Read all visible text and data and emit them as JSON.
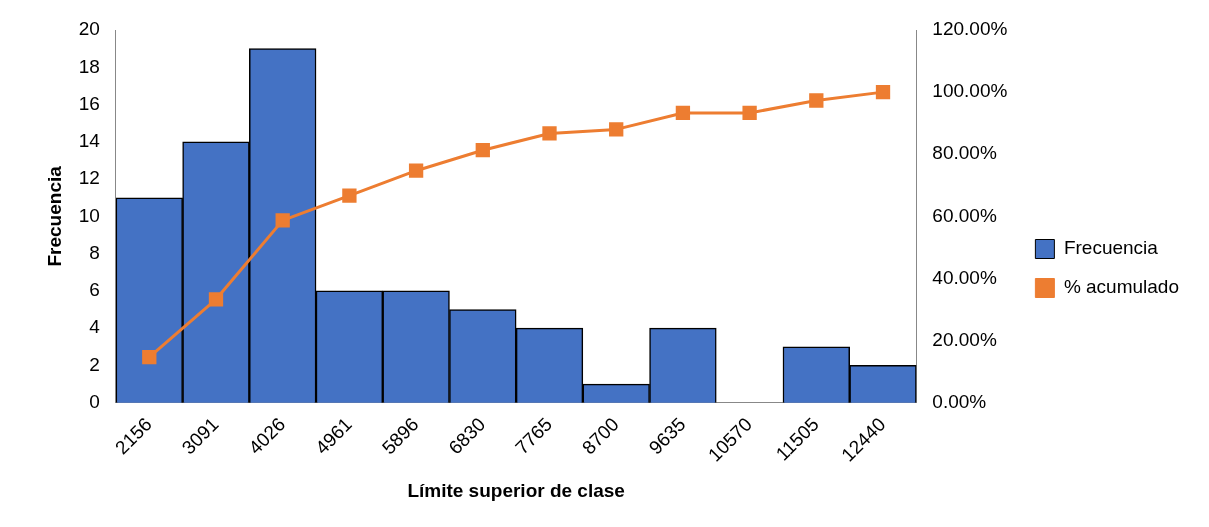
{
  "chart_data": {
    "type": "bar",
    "xlabel": "Límite superior de clase",
    "ylabel": "Frecuencia",
    "categories": [
      "2156",
      "3091",
      "4026",
      "4961",
      "5896",
      "6830",
      "7765",
      "8700",
      "9635",
      "10570",
      "11505",
      "12440"
    ],
    "series": [
      {
        "name": "Frecuencia",
        "color": "#4472c4",
        "values": [
          11,
          14,
          19,
          6,
          6,
          5,
          4,
          1,
          4,
          0,
          3,
          2
        ]
      },
      {
        "name": "% acumulado",
        "type": "line",
        "axis": "y2",
        "color": "#ed7d31",
        "marker": "square",
        "values": [
          14.7,
          33.3,
          58.7,
          66.7,
          74.7,
          81.3,
          86.7,
          88,
          93.3,
          93.3,
          97.3,
          100
        ]
      }
    ],
    "ylim": [
      0,
      20
    ],
    "yticks": [
      0,
      2,
      4,
      6,
      8,
      10,
      12,
      14,
      16,
      18,
      20
    ],
    "y2lim": [
      0,
      120
    ],
    "y2ticks": [
      {
        "value": 0,
        "label": "0.00%"
      },
      {
        "value": 20,
        "label": "20.00%"
      },
      {
        "value": 40,
        "label": "40.00%"
      },
      {
        "value": 60,
        "label": "60.00%"
      },
      {
        "value": 80,
        "label": "80.00%"
      },
      {
        "value": 100,
        "label": "100.00%"
      },
      {
        "value": 120,
        "label": "120.00%"
      }
    ],
    "grid": false,
    "legend": "right"
  }
}
